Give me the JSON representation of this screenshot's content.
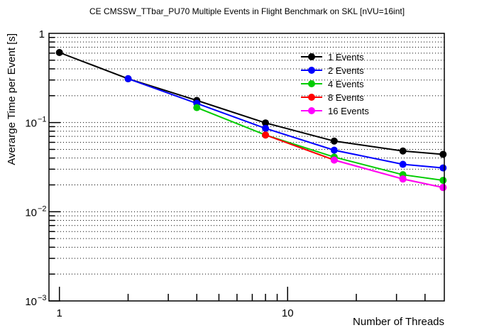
{
  "chart_data": {
    "type": "line",
    "title": "CE CMSSW_TTbar_PU70 Multiple Events in Flight Benchmark on SKL [nVU=16int]",
    "xlabel": "Number of Threads",
    "ylabel": "Averarge Time per Event [s]",
    "xscale": "log",
    "yscale": "log",
    "xlim": [
      0.9,
      48.6
    ],
    "ylim": [
      0.001,
      1
    ],
    "grid": "y-dotted",
    "legend_position": "top-right",
    "x_tick_labels": [
      {
        "value": 1,
        "label": "1"
      },
      {
        "value": 10,
        "label": "10"
      }
    ],
    "x_minor_ticks": [
      2,
      3,
      4,
      5,
      6,
      7,
      8,
      9,
      20,
      30,
      40
    ],
    "y_tick_labels": [
      {
        "value": 1,
        "base": "1",
        "exp": ""
      },
      {
        "value": 0.1,
        "base": "10",
        "exp": "−1"
      },
      {
        "value": 0.01,
        "base": "10",
        "exp": "−2"
      },
      {
        "value": 0.001,
        "base": "10",
        "exp": "−3"
      }
    ],
    "series": [
      {
        "name": "1 Events",
        "color": "#000000",
        "x": [
          1,
          2,
          4,
          8,
          16,
          32,
          48
        ],
        "y": [
          0.61,
          0.31,
          0.177,
          0.099,
          0.062,
          0.048,
          0.044
        ]
      },
      {
        "name": "2 Events",
        "color": "#0000ff",
        "x": [
          2,
          4,
          8,
          16,
          32,
          48
        ],
        "y": [
          0.31,
          0.164,
          0.086,
          0.049,
          0.034,
          0.031
        ]
      },
      {
        "name": "4 Events",
        "color": "#00cc00",
        "x": [
          4,
          8,
          16,
          32,
          48
        ],
        "y": [
          0.147,
          0.0725,
          0.041,
          0.026,
          0.0225
        ]
      },
      {
        "name": "8 Events",
        "color": "#ff0000",
        "x": [
          8,
          16,
          32,
          48
        ],
        "y": [
          0.0725,
          0.038,
          0.0233,
          0.0187
        ]
      },
      {
        "name": "16 Events",
        "color": "#ff00ff",
        "x": [
          16,
          32,
          48
        ],
        "y": [
          0.038,
          0.0233,
          0.0187
        ]
      }
    ]
  }
}
